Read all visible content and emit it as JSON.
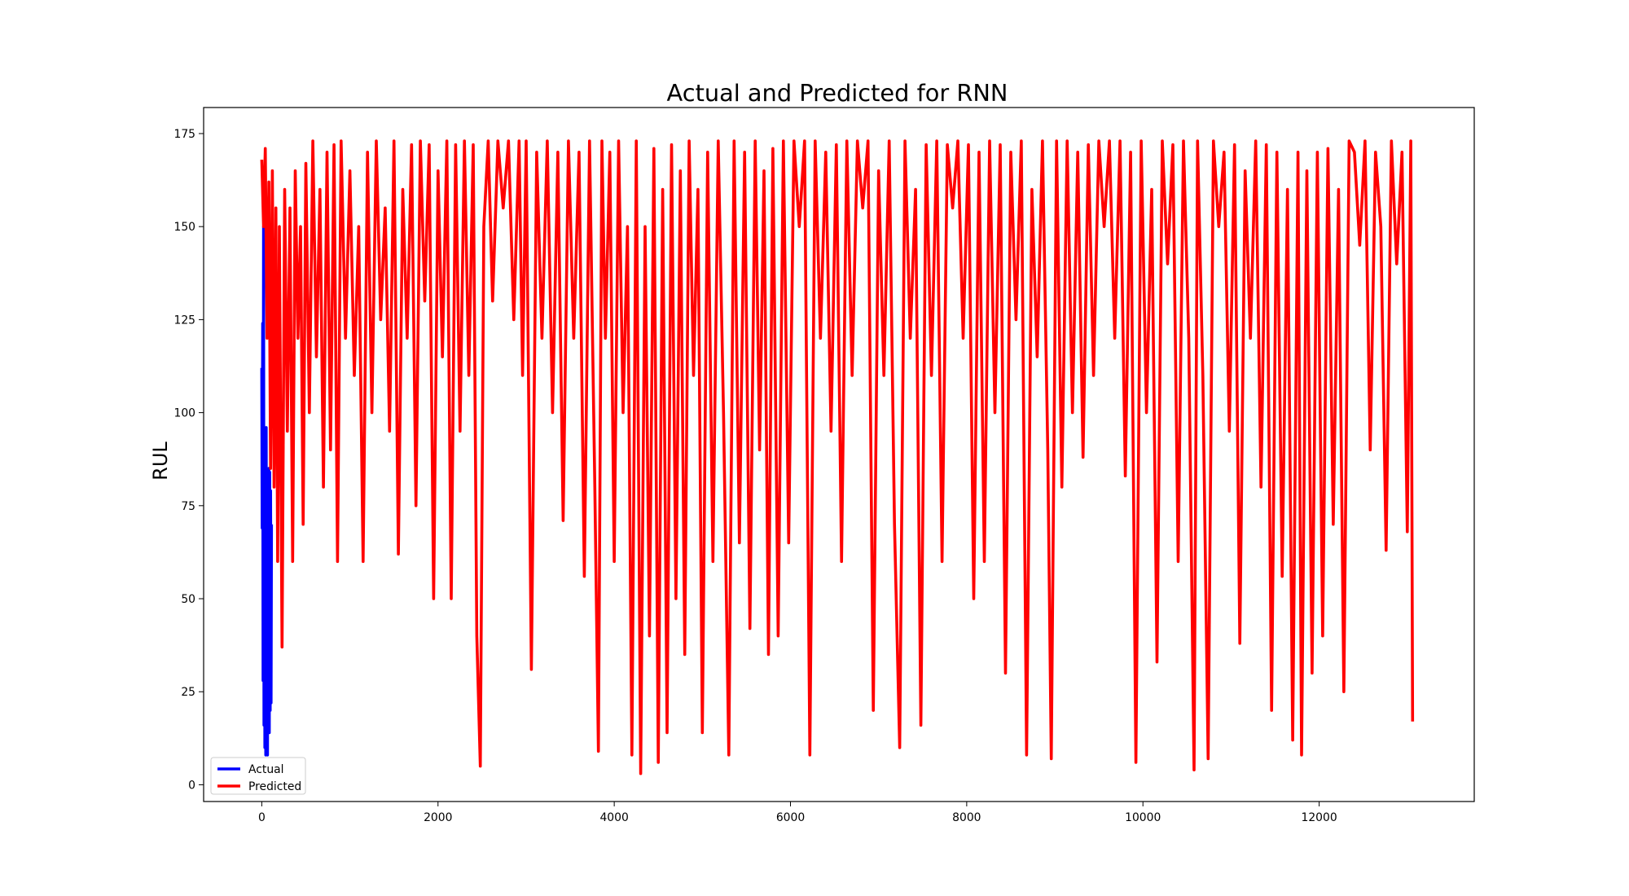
{
  "chart_data": {
    "type": "line",
    "title": "Actual and Predicted for RNN",
    "xlabel": "",
    "ylabel": "RUL",
    "xlim": [
      -660,
      13760
    ],
    "ylim": [
      -4.5,
      182
    ],
    "x_ticks": [
      0,
      2000,
      4000,
      6000,
      8000,
      10000,
      12000
    ],
    "y_ticks": [
      0,
      25,
      50,
      75,
      100,
      125,
      150,
      175
    ],
    "grid": false,
    "legend": {
      "placement": "lower-left"
    },
    "series": [
      {
        "name": "Actual",
        "color": "#0000ff",
        "x": [
          0,
          5,
          10,
          15,
          20,
          25,
          30,
          35,
          40,
          45,
          50,
          55,
          60,
          65,
          70,
          75,
          80,
          85,
          90,
          95,
          100,
          105,
          110
        ],
        "values": [
          112,
          69,
          124,
          28,
          150,
          16,
          86,
          10,
          93,
          8,
          96,
          12,
          74,
          8,
          80,
          30,
          85,
          14,
          84,
          20,
          79,
          22,
          70
        ]
      },
      {
        "name": "Predicted",
        "color": "#ff0000",
        "x": [
          0,
          20,
          40,
          60,
          80,
          100,
          120,
          140,
          160,
          180,
          200,
          230,
          260,
          290,
          320,
          350,
          380,
          410,
          440,
          470,
          500,
          540,
          580,
          620,
          660,
          700,
          740,
          780,
          820,
          860,
          900,
          950,
          1000,
          1050,
          1100,
          1150,
          1200,
          1250,
          1300,
          1350,
          1400,
          1450,
          1500,
          1550,
          1600,
          1650,
          1700,
          1750,
          1800,
          1850,
          1900,
          1950,
          2000,
          2050,
          2100,
          2150,
          2200,
          2250,
          2300,
          2350,
          2400,
          2440,
          2480,
          2520,
          2570,
          2620,
          2680,
          2740,
          2800,
          2860,
          2920,
          2960,
          3000,
          3060,
          3120,
          3180,
          3240,
          3300,
          3360,
          3420,
          3480,
          3540,
          3600,
          3660,
          3720,
          3780,
          3820,
          3860,
          3900,
          3950,
          4000,
          4050,
          4100,
          4150,
          4200,
          4250,
          4300,
          4350,
          4400,
          4450,
          4500,
          4550,
          4600,
          4650,
          4700,
          4750,
          4800,
          4850,
          4900,
          4950,
          5000,
          5060,
          5120,
          5180,
          5240,
          5300,
          5360,
          5420,
          5480,
          5540,
          5600,
          5650,
          5700,
          5750,
          5800,
          5860,
          5920,
          5980,
          6040,
          6100,
          6160,
          6220,
          6280,
          6340,
          6400,
          6460,
          6520,
          6580,
          6640,
          6700,
          6760,
          6820,
          6880,
          6940,
          7000,
          7060,
          7120,
          7180,
          7240,
          7300,
          7360,
          7420,
          7480,
          7540,
          7600,
          7660,
          7720,
          7780,
          7840,
          7900,
          7960,
          8020,
          8080,
          8140,
          8200,
          8260,
          8320,
          8380,
          8440,
          8500,
          8560,
          8620,
          8680,
          8740,
          8800,
          8860,
          8920,
          8960,
          9020,
          9080,
          9140,
          9200,
          9260,
          9320,
          9380,
          9440,
          9500,
          9560,
          9620,
          9680,
          9740,
          9800,
          9860,
          9920,
          9980,
          10040,
          10100,
          10160,
          10220,
          10280,
          10340,
          10400,
          10460,
          10520,
          10580,
          10620,
          10680,
          10740,
          10800,
          10860,
          10920,
          10980,
          11040,
          11100,
          11160,
          11220,
          11280,
          11340,
          11400,
          11460,
          11520,
          11580,
          11640,
          11700,
          11760,
          11800,
          11860,
          11920,
          11980,
          12040,
          12100,
          12160,
          12220,
          12280,
          12340,
          12400,
          12460,
          12520,
          12580,
          12640,
          12700,
          12760,
          12820,
          12880,
          12940,
          13000,
          13040,
          13060
        ],
        "values": [
          168,
          150,
          171,
          120,
          162,
          85,
          165,
          80,
          155,
          60,
          150,
          37,
          160,
          95,
          155,
          60,
          165,
          120,
          150,
          70,
          167,
          100,
          173,
          115,
          160,
          80,
          170,
          90,
          172,
          60,
          173,
          120,
          165,
          110,
          150,
          60,
          170,
          100,
          173,
          125,
          155,
          95,
          173,
          62,
          160,
          120,
          172,
          75,
          173,
          130,
          172,
          50,
          165,
          115,
          173,
          50,
          172,
          95,
          173,
          110,
          172,
          40,
          5,
          150,
          173,
          130,
          173,
          155,
          173,
          125,
          173,
          110,
          173,
          31,
          170,
          120,
          173,
          100,
          170,
          71,
          173,
          120,
          170,
          56,
          173,
          80,
          9,
          173,
          120,
          170,
          60,
          173,
          100,
          150,
          8,
          173,
          3,
          150,
          40,
          171,
          6,
          160,
          14,
          172,
          50,
          165,
          35,
          173,
          110,
          160,
          14,
          170,
          60,
          173,
          100,
          8,
          173,
          65,
          170,
          42,
          173,
          90,
          165,
          35,
          171,
          40,
          173,
          65,
          173,
          150,
          173,
          8,
          173,
          120,
          170,
          95,
          172,
          60,
          173,
          110,
          173,
          155,
          173,
          20,
          165,
          110,
          173,
          70,
          10,
          173,
          120,
          160,
          16,
          172,
          110,
          173,
          60,
          172,
          155,
          173,
          120,
          172,
          50,
          170,
          60,
          173,
          100,
          172,
          30,
          170,
          125,
          173,
          8,
          160,
          115,
          173,
          90,
          7,
          173,
          80,
          173,
          100,
          170,
          88,
          172,
          110,
          173,
          150,
          173,
          120,
          173,
          83,
          170,
          6,
          173,
          100,
          160,
          33,
          173,
          140,
          172,
          60,
          173,
          120,
          4,
          173,
          110,
          7,
          173,
          150,
          170,
          95,
          172,
          38,
          165,
          120,
          173,
          80,
          172,
          20,
          170,
          56,
          160,
          12,
          170,
          8,
          165,
          30,
          170,
          40,
          171,
          70,
          160,
          25,
          173,
          170,
          145,
          173,
          90,
          170,
          150,
          63,
          173,
          140,
          170,
          68,
          173,
          17
        ]
      }
    ]
  }
}
